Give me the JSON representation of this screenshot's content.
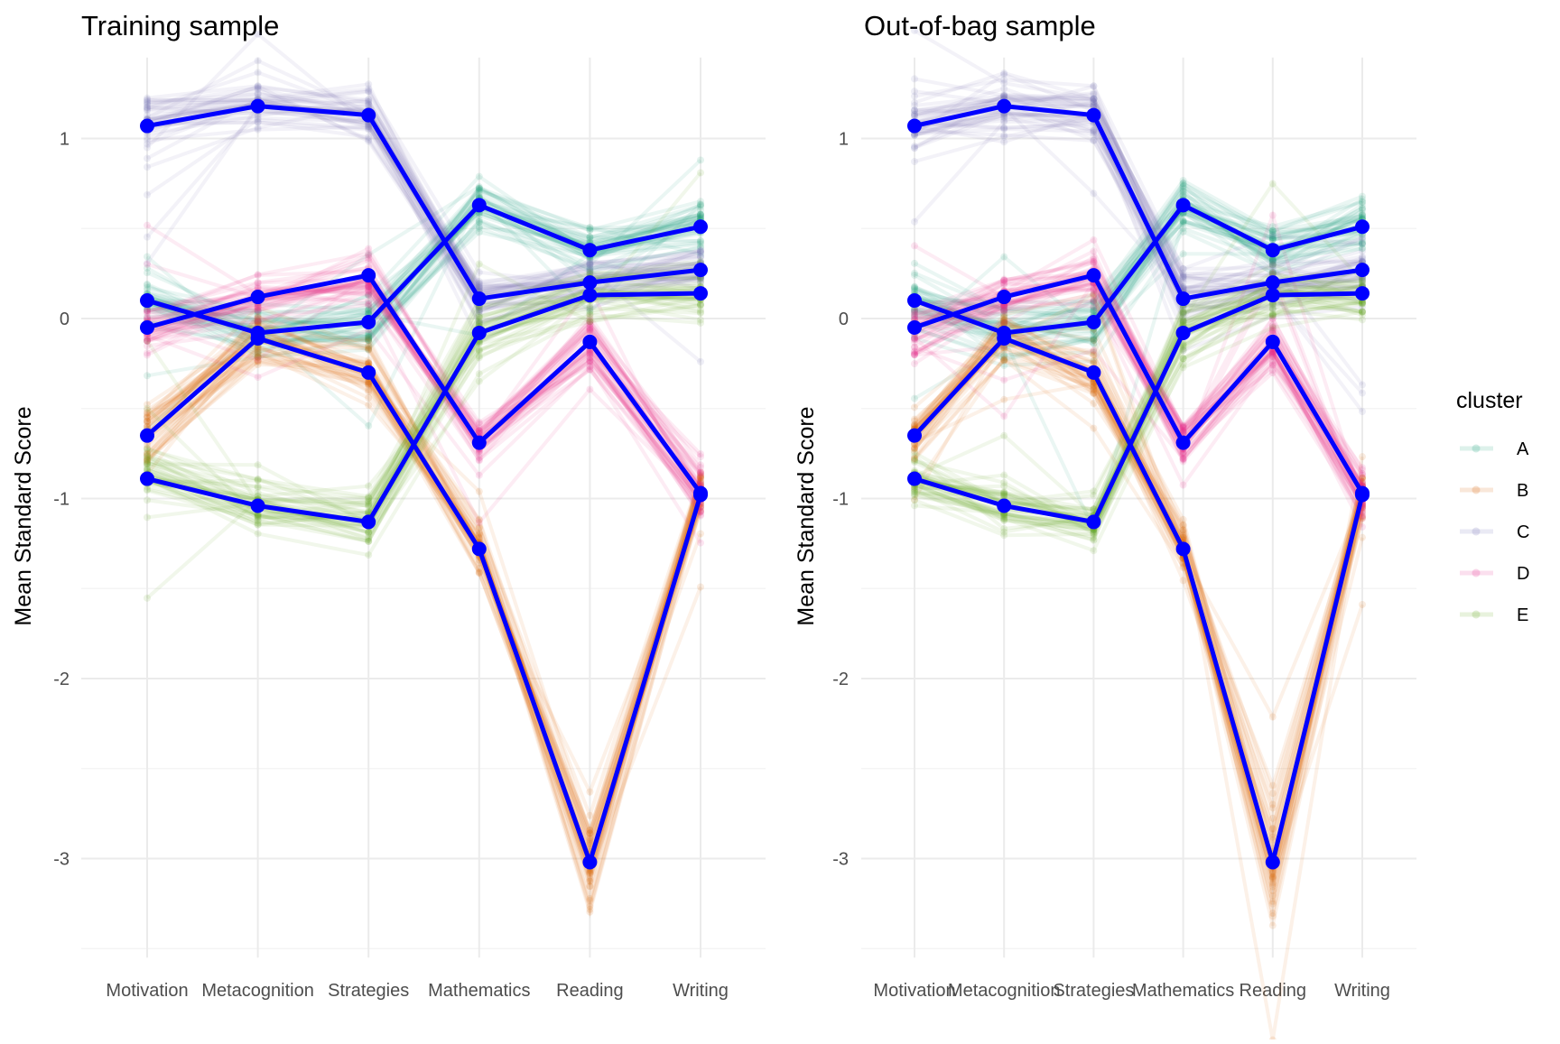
{
  "chart_data": [
    {
      "type": "line",
      "title": "Training sample",
      "ylabel": "Mean Standard Score",
      "xlabel": "",
      "categories": [
        "Motivation",
        "Metacognition",
        "Strategies",
        "Mathematics",
        "Reading",
        "Writing"
      ],
      "ylim": [
        -3.55,
        1.45
      ],
      "yticks": [
        1,
        0,
        -1,
        -2,
        -3
      ],
      "grid": true,
      "series": [
        {
          "name": "A",
          "values": [
            0.1,
            -0.08,
            -0.02,
            0.63,
            0.38,
            0.51
          ]
        },
        {
          "name": "B",
          "values": [
            -0.65,
            -0.11,
            -0.3,
            -1.28,
            -3.02,
            -0.98
          ]
        },
        {
          "name": "C",
          "values": [
            1.07,
            1.18,
            1.13,
            0.11,
            0.2,
            0.27
          ]
        },
        {
          "name": "D",
          "values": [
            -0.05,
            0.12,
            0.24,
            -0.69,
            -0.13,
            -0.97
          ]
        },
        {
          "name": "E",
          "values": [
            -0.89,
            -1.04,
            -1.13,
            -0.08,
            0.13,
            0.14
          ]
        }
      ],
      "mean_line_color": "#0000FF"
    },
    {
      "type": "line",
      "title": "Out-of-bag sample",
      "ylabel": "Mean Standard Score",
      "xlabel": "",
      "categories": [
        "Motivation",
        "Metacognition",
        "Strategies",
        "Mathematics",
        "Reading",
        "Writing"
      ],
      "ylim": [
        -3.55,
        1.45
      ],
      "yticks": [
        1,
        0,
        -1,
        -2,
        -3
      ],
      "grid": true,
      "series": [
        {
          "name": "A",
          "values": [
            0.1,
            -0.08,
            -0.02,
            0.63,
            0.38,
            0.51
          ]
        },
        {
          "name": "B",
          "values": [
            -0.65,
            -0.11,
            -0.3,
            -1.28,
            -3.02,
            -0.98
          ]
        },
        {
          "name": "C",
          "values": [
            1.07,
            1.18,
            1.13,
            0.11,
            0.2,
            0.27
          ]
        },
        {
          "name": "D",
          "values": [
            -0.05,
            0.12,
            0.24,
            -0.69,
            -0.13,
            -0.97
          ]
        },
        {
          "name": "E",
          "values": [
            -0.89,
            -1.04,
            -1.13,
            -0.08,
            0.13,
            0.14
          ]
        }
      ],
      "mean_line_color": "#0000FF"
    }
  ],
  "legend": {
    "title": "cluster",
    "placement": "right",
    "items": [
      {
        "label": "A",
        "color": "#1B9E77"
      },
      {
        "label": "B",
        "color": "#D95F02"
      },
      {
        "label": "C",
        "color": "#7570B3"
      },
      {
        "label": "D",
        "color": "#E7298A"
      },
      {
        "label": "E",
        "color": "#66A61E"
      }
    ]
  }
}
